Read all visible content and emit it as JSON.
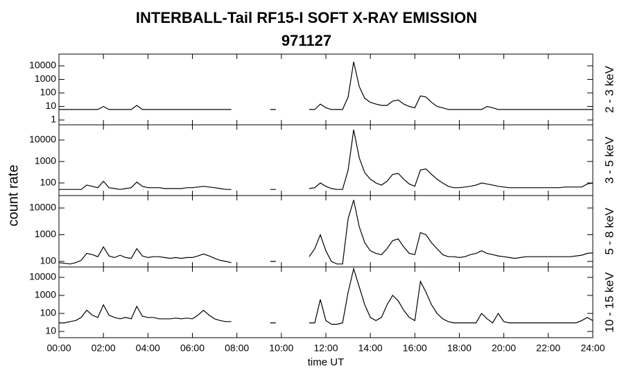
{
  "title": "INTERBALL-Tail RF15-I SOFT X-RAY EMISSION",
  "subtitle": "971127",
  "ylabel": "count rate",
  "xlabel": "time UT",
  "chart_data": [
    {
      "type": "line",
      "label": "2 - 3 keV",
      "color": "#000000",
      "log": true,
      "ylim": [
        0.44,
        74000
      ],
      "yticks": [
        1,
        10,
        100,
        1000,
        10000
      ],
      "xlim": [
        0,
        24
      ],
      "xticks": [
        0,
        2,
        4,
        6,
        8,
        10,
        12,
        14,
        16,
        18,
        20,
        22,
        24
      ],
      "x": [
        0,
        0.25,
        0.5,
        0.75,
        1,
        1.25,
        1.5,
        1.75,
        2,
        2.25,
        2.5,
        2.75,
        3,
        3.25,
        3.5,
        3.75,
        4,
        4.25,
        4.5,
        4.75,
        5,
        5.25,
        5.5,
        5.75,
        6,
        6.25,
        6.5,
        6.75,
        7,
        7.25,
        7.5,
        7.75,
        8,
        8.25,
        8.5,
        8.75,
        9,
        9.25,
        9.5,
        9.75,
        10,
        10.25,
        10.5,
        10.75,
        11,
        11.25,
        11.5,
        11.75,
        12,
        12.25,
        12.5,
        12.75,
        13,
        13.25,
        13.5,
        13.75,
        14,
        14.25,
        14.5,
        14.75,
        15,
        15.25,
        15.5,
        15.75,
        16,
        16.25,
        16.5,
        16.75,
        17,
        17.25,
        17.5,
        17.75,
        18,
        18.25,
        18.5,
        18.75,
        19,
        19.25,
        19.5,
        19.75,
        20,
        20.25,
        20.5,
        20.75,
        21,
        21.25,
        21.5,
        21.75,
        22,
        22.25,
        22.5,
        22.75,
        23,
        23.25,
        23.5,
        23.75,
        24
      ],
      "values": [
        6,
        6,
        6,
        6,
        6,
        6,
        6,
        6,
        10,
        6,
        6,
        6,
        6,
        6,
        12,
        6,
        6,
        6,
        6,
        6,
        6,
        6,
        6,
        6,
        6,
        6,
        6,
        6,
        6,
        6,
        6,
        6,
        null,
        6,
        null,
        null,
        null,
        null,
        6,
        6,
        null,
        null,
        null,
        null,
        null,
        6,
        6,
        15,
        8,
        6,
        6,
        6,
        50,
        20000,
        300,
        40,
        20,
        15,
        12,
        12,
        25,
        30,
        15,
        10,
        8,
        60,
        50,
        20,
        10,
        8,
        6,
        6,
        6,
        6,
        6,
        6,
        6,
        10,
        8,
        6,
        6,
        6,
        6,
        6,
        6,
        6,
        6,
        6,
        6,
        6,
        6,
        6,
        6,
        6,
        6,
        6,
        6
      ]
    },
    {
      "type": "line",
      "label": "3 - 5 keV",
      "color": "#000000",
      "log": true,
      "ylim": [
        26,
        51000
      ],
      "yticks": [
        100,
        1000,
        10000
      ],
      "xlim": [
        0,
        24
      ],
      "xticks": [
        0,
        2,
        4,
        6,
        8,
        10,
        12,
        14,
        16,
        18,
        20,
        22,
        24
      ],
      "x": [
        0,
        0.25,
        0.5,
        0.75,
        1,
        1.25,
        1.5,
        1.75,
        2,
        2.25,
        2.5,
        2.75,
        3,
        3.25,
        3.5,
        3.75,
        4,
        4.25,
        4.5,
        4.75,
        5,
        5.25,
        5.5,
        5.75,
        6,
        6.25,
        6.5,
        6.75,
        7,
        7.25,
        7.5,
        7.75,
        8,
        8.25,
        8.5,
        8.75,
        9,
        9.25,
        9.5,
        9.75,
        10,
        10.25,
        10.5,
        10.75,
        11,
        11.25,
        11.5,
        11.75,
        12,
        12.25,
        12.5,
        12.75,
        13,
        13.25,
        13.5,
        13.75,
        14,
        14.25,
        14.5,
        14.75,
        15,
        15.25,
        15.5,
        15.75,
        16,
        16.25,
        16.5,
        16.75,
        17,
        17.25,
        17.5,
        17.75,
        18,
        18.25,
        18.5,
        18.75,
        19,
        19.25,
        19.5,
        19.75,
        20,
        20.25,
        20.5,
        20.75,
        21,
        21.25,
        21.5,
        21.75,
        22,
        22.25,
        22.5,
        22.75,
        23,
        23.25,
        23.5,
        23.75,
        24
      ],
      "values": [
        50,
        50,
        50,
        50,
        50,
        80,
        70,
        60,
        120,
        60,
        55,
        50,
        55,
        60,
        110,
        70,
        60,
        60,
        60,
        55,
        55,
        55,
        55,
        60,
        60,
        65,
        70,
        65,
        60,
        55,
        50,
        50,
        null,
        50,
        null,
        null,
        null,
        null,
        50,
        50,
        null,
        null,
        null,
        null,
        null,
        55,
        60,
        100,
        70,
        55,
        50,
        50,
        400,
        30000,
        1500,
        300,
        150,
        100,
        80,
        120,
        250,
        280,
        150,
        90,
        70,
        400,
        450,
        250,
        150,
        100,
        70,
        60,
        60,
        65,
        70,
        80,
        100,
        90,
        80,
        70,
        65,
        60,
        60,
        60,
        60,
        60,
        60,
        60,
        60,
        60,
        60,
        65,
        65,
        65,
        65,
        90,
        100
      ]
    },
    {
      "type": "line",
      "label": "5 - 8 keV",
      "color": "#000000",
      "log": true,
      "ylim": [
        62,
        29300
      ],
      "yticks": [
        100,
        1000,
        10000
      ],
      "xlim": [
        0,
        24
      ],
      "xticks": [
        0,
        2,
        4,
        6,
        8,
        10,
        12,
        14,
        16,
        18,
        20,
        22,
        24
      ],
      "x": [
        0,
        0.25,
        0.5,
        0.75,
        1,
        1.25,
        1.5,
        1.75,
        2,
        2.25,
        2.5,
        2.75,
        3,
        3.25,
        3.5,
        3.75,
        4,
        4.25,
        4.5,
        4.75,
        5,
        5.25,
        5.5,
        5.75,
        6,
        6.25,
        6.5,
        6.75,
        7,
        7.25,
        7.5,
        7.75,
        8,
        8.25,
        8.5,
        8.75,
        9,
        9.25,
        9.5,
        9.75,
        10,
        10.25,
        10.5,
        10.75,
        11,
        11.25,
        11.5,
        11.75,
        12,
        12.25,
        12.5,
        12.75,
        13,
        13.25,
        13.5,
        13.75,
        14,
        14.25,
        14.5,
        14.75,
        15,
        15.25,
        15.5,
        15.75,
        16,
        16.25,
        16.5,
        16.75,
        17,
        17.25,
        17.5,
        17.75,
        18,
        18.25,
        18.5,
        18.75,
        19,
        19.25,
        19.5,
        19.75,
        20,
        20.25,
        20.5,
        20.75,
        21,
        21.25,
        21.5,
        21.75,
        22,
        22.25,
        22.5,
        22.75,
        23,
        23.25,
        23.5,
        23.75,
        24
      ],
      "values": [
        90,
        85,
        80,
        90,
        110,
        200,
        180,
        150,
        350,
        160,
        140,
        170,
        140,
        130,
        300,
        160,
        140,
        150,
        150,
        140,
        130,
        140,
        130,
        140,
        140,
        160,
        190,
        160,
        130,
        110,
        100,
        90,
        null,
        90,
        null,
        null,
        null,
        null,
        100,
        100,
        null,
        null,
        null,
        null,
        null,
        150,
        300,
        1000,
        250,
        100,
        80,
        80,
        4000,
        20000,
        2000,
        500,
        250,
        200,
        180,
        300,
        600,
        700,
        350,
        200,
        180,
        1200,
        1000,
        500,
        300,
        180,
        150,
        150,
        140,
        150,
        180,
        200,
        250,
        200,
        180,
        160,
        150,
        140,
        130,
        140,
        150,
        150,
        150,
        150,
        150,
        150,
        150,
        150,
        150,
        160,
        170,
        200,
        210
      ]
    },
    {
      "type": "line",
      "label": "10 - 15 keV",
      "color": "#000000",
      "log": true,
      "ylim": [
        4.5,
        37800
      ],
      "yticks": [
        10,
        100,
        1000,
        10000
      ],
      "xlim": [
        0,
        24
      ],
      "xticks": [
        {
          "value": 0,
          "label": "00:00"
        },
        {
          "value": 2,
          "label": "02:00"
        },
        {
          "value": 4,
          "label": "04:00"
        },
        {
          "value": 6,
          "label": "06:00"
        },
        {
          "value": 8,
          "label": "08:00"
        },
        {
          "value": 10,
          "label": "10:00"
        },
        {
          "value": 12,
          "label": "12:00"
        },
        {
          "value": 14,
          "label": "14:00"
        },
        {
          "value": 16,
          "label": "16:00"
        },
        {
          "value": 18,
          "label": "18:00"
        },
        {
          "value": 20,
          "label": "20:00"
        },
        {
          "value": 22,
          "label": "22:00"
        },
        {
          "value": 24,
          "label": "24:00"
        }
      ],
      "x": [
        0,
        0.25,
        0.5,
        0.75,
        1,
        1.25,
        1.5,
        1.75,
        2,
        2.25,
        2.5,
        2.75,
        3,
        3.25,
        3.5,
        3.75,
        4,
        4.25,
        4.5,
        4.75,
        5,
        5.25,
        5.5,
        5.75,
        6,
        6.25,
        6.5,
        6.75,
        7,
        7.25,
        7.5,
        7.75,
        8,
        8.25,
        8.5,
        8.75,
        9,
        9.25,
        9.5,
        9.75,
        10,
        10.25,
        10.5,
        10.75,
        11,
        11.25,
        11.5,
        11.75,
        12,
        12.25,
        12.5,
        12.75,
        13,
        13.25,
        13.5,
        13.75,
        14,
        14.25,
        14.5,
        14.75,
        15,
        15.25,
        15.5,
        15.75,
        16,
        16.25,
        16.5,
        16.75,
        17,
        17.25,
        17.5,
        17.75,
        18,
        18.25,
        18.5,
        18.75,
        19,
        19.25,
        19.5,
        19.75,
        20,
        20.25,
        20.5,
        20.75,
        21,
        21.25,
        21.5,
        21.75,
        22,
        22.25,
        22.5,
        22.75,
        23,
        23.25,
        23.5,
        23.75,
        24
      ],
      "values": [
        30,
        30,
        35,
        40,
        60,
        150,
        80,
        60,
        300,
        80,
        60,
        50,
        60,
        50,
        250,
        70,
        60,
        60,
        50,
        50,
        50,
        55,
        50,
        55,
        50,
        80,
        150,
        80,
        50,
        40,
        35,
        35,
        null,
        30,
        null,
        null,
        null,
        null,
        30,
        30,
        null,
        null,
        null,
        null,
        null,
        30,
        30,
        600,
        40,
        25,
        25,
        30,
        1500,
        30000,
        3000,
        300,
        60,
        40,
        60,
        300,
        1000,
        500,
        150,
        60,
        40,
        6000,
        1500,
        300,
        100,
        50,
        35,
        30,
        30,
        30,
        30,
        30,
        100,
        50,
        30,
        100,
        35,
        30,
        30,
        30,
        30,
        30,
        30,
        30,
        30,
        30,
        30,
        30,
        30,
        30,
        40,
        60,
        40
      ]
    }
  ]
}
